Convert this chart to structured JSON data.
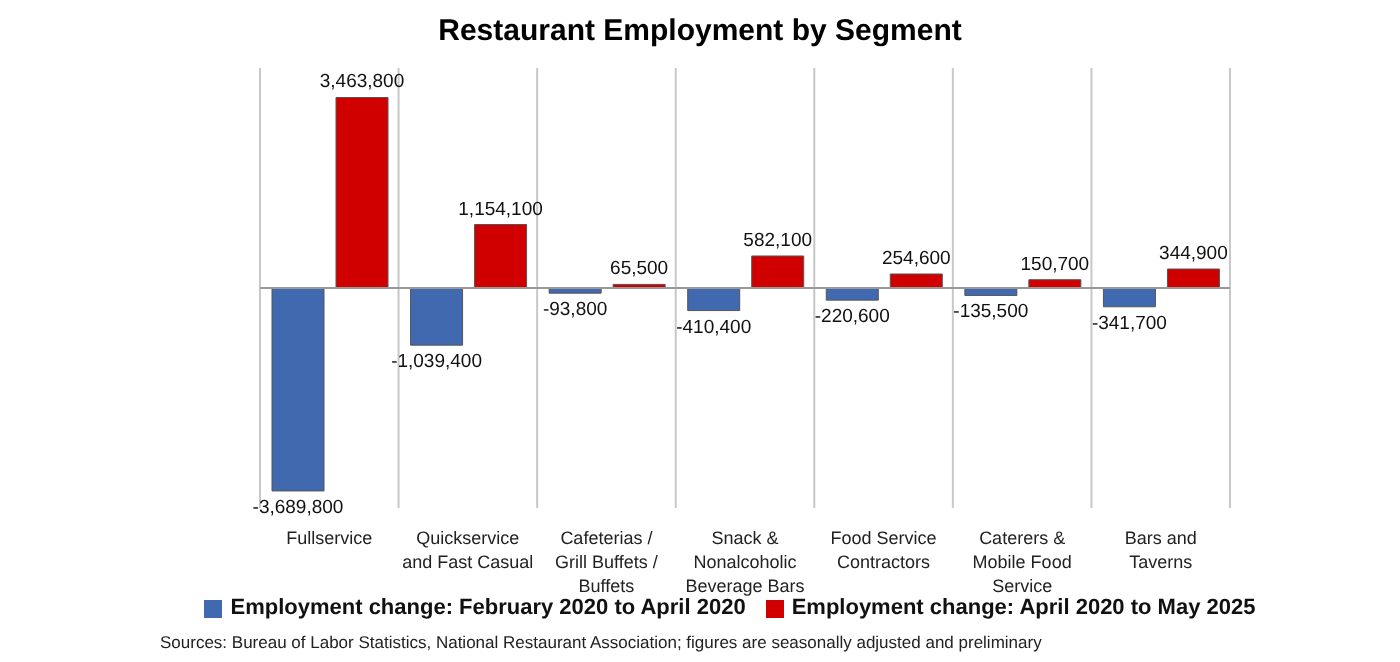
{
  "chart_data": {
    "type": "bar",
    "title": "Restaurant Employment by Segment",
    "categories": [
      "Fullservice",
      "Quickservice and Fast Casual",
      "Cafeterias / Grill Buffets / Buffets",
      "Snack & Nonalcoholic Beverage Bars",
      "Food Service Contractors",
      "Caterers & Mobile Food Service",
      "Bars and Taverns"
    ],
    "series": [
      {
        "name": "Employment change: February 2020 to April 2020",
        "color": "#4169b0",
        "values": [
          -3689800,
          -1039400,
          -93800,
          -410400,
          -220600,
          -135500,
          -341700
        ],
        "value_labels": [
          "-3,689,800",
          "-1,039,400",
          "-93,800",
          "-410,400",
          "-220,600",
          "-135,500",
          "-341,700"
        ]
      },
      {
        "name": "Employment change: April 2020 to May 2025",
        "color": "#d00000",
        "values": [
          3463800,
          1154100,
          65500,
          582100,
          254600,
          150700,
          344900
        ],
        "value_labels": [
          "3,463,800",
          "1,154,100",
          "65,500",
          "582,100",
          "254,600",
          "150,700",
          "344,900"
        ]
      }
    ],
    "grid": "x",
    "legend": "bottom",
    "tick_labels": "x",
    "annotations": [
      "Sources: Bureau of Labor Statistics, National Restaurant Association; figures are seasonally adjusted and preliminary"
    ]
  }
}
